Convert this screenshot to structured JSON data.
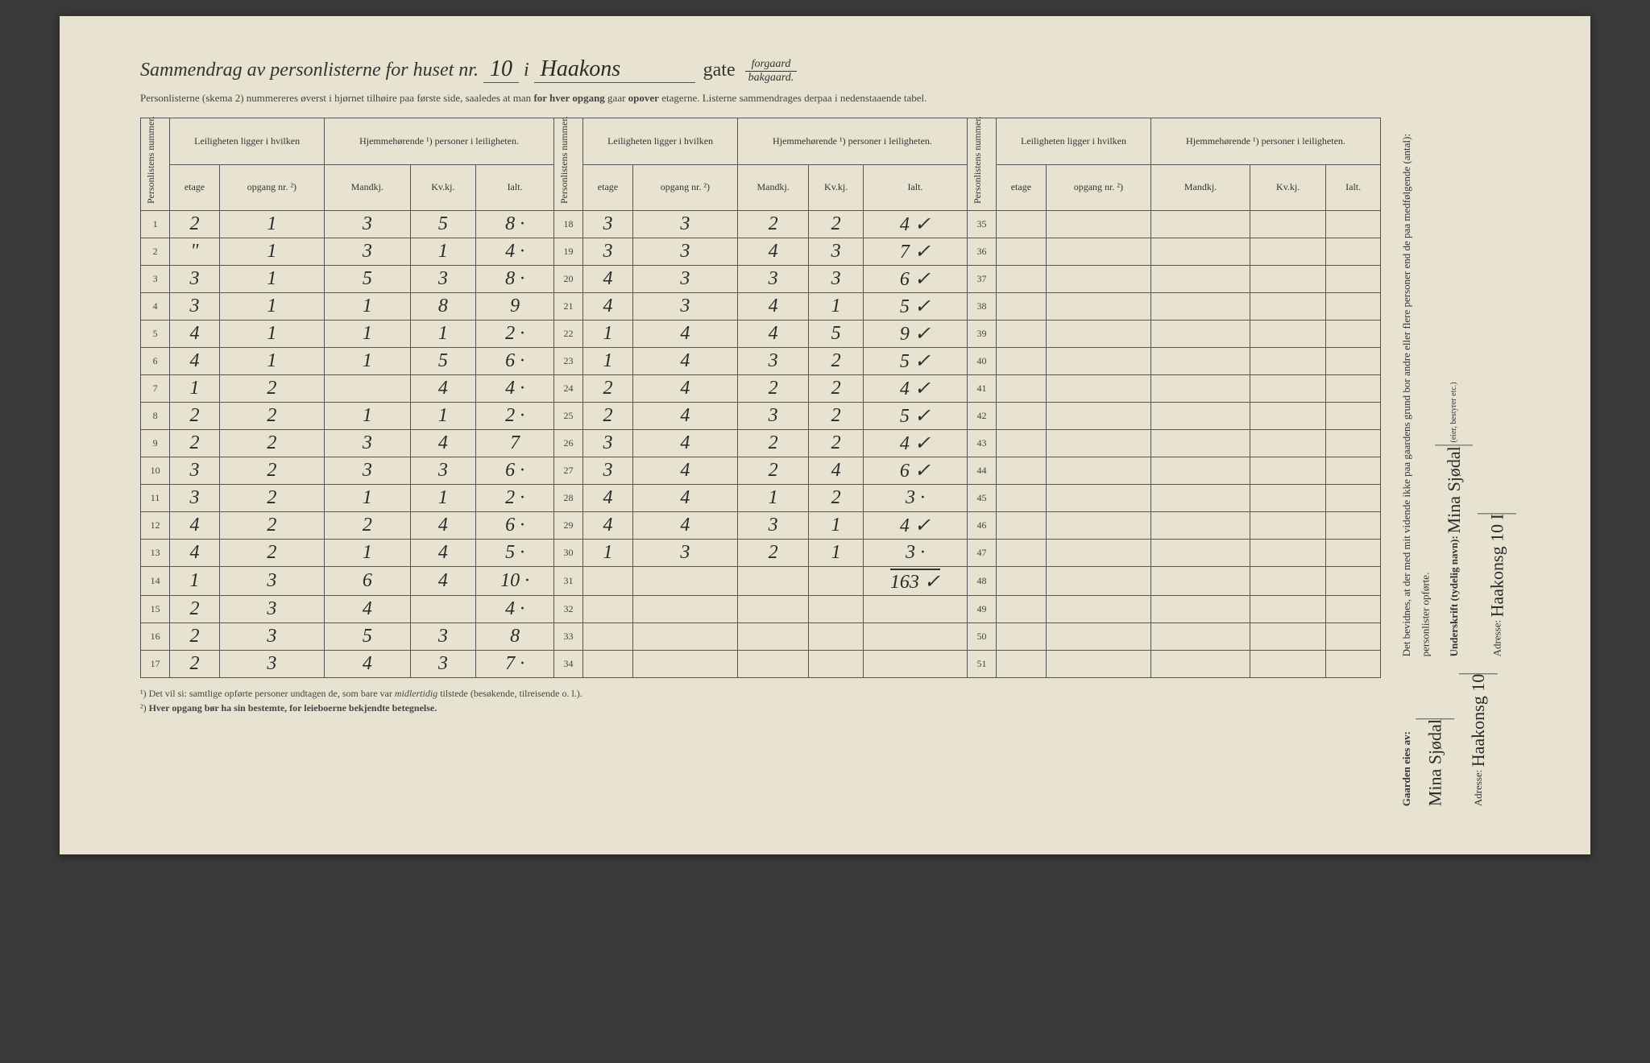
{
  "title": {
    "pre": "Sammendrag av personlisterne for huset nr.",
    "nr": "10",
    "i": "i",
    "street": "Haakons",
    "gate": "gate",
    "frac_top": "forgaard",
    "frac_bot": "bakgaard."
  },
  "subtitle": "Personlisterne (skema 2) nummereres øverst i hjørnet tilhøire paa første side, saaledes at man <b>for hver opgang</b> gaar <b>opover</b> etagerne.  Listerne sammendrages derpaa i nedenstaaende tabel.",
  "headers": {
    "personlistens": "Personlistens nummer.",
    "leiligheten": "Leiligheten ligger i hvilken",
    "hjemme": "Hjemmehørende ¹) personer i leiligheten.",
    "etage": "etage",
    "opgang": "opgang nr. ²)",
    "mandkj": "Mandkj.",
    "kvkj": "Kv.kj.",
    "ialt": "Ialt."
  },
  "rows": [
    {
      "n": 1,
      "d": [
        "2",
        "1",
        "3",
        "5",
        "8 ·"
      ]
    },
    {
      "n": 2,
      "d": [
        "\"",
        "1",
        "3",
        "1",
        "4 ·"
      ]
    },
    {
      "n": 3,
      "d": [
        "3",
        "1",
        "5",
        "3",
        "8 ·"
      ]
    },
    {
      "n": 4,
      "d": [
        "3",
        "1",
        "1",
        "8",
        "9"
      ]
    },
    {
      "n": 5,
      "d": [
        "4",
        "1",
        "1",
        "1",
        "2 ·"
      ]
    },
    {
      "n": 6,
      "d": [
        "4",
        "1",
        "1",
        "5",
        "6 ·"
      ]
    },
    {
      "n": 7,
      "d": [
        "1",
        "2",
        "",
        "4",
        "4 ·"
      ]
    },
    {
      "n": 8,
      "d": [
        "2",
        "2",
        "1",
        "1",
        "2 ·"
      ]
    },
    {
      "n": 9,
      "d": [
        "2",
        "2",
        "3",
        "4",
        "7"
      ]
    },
    {
      "n": 10,
      "d": [
        "3",
        "2",
        "3",
        "3",
        "6 ·"
      ]
    },
    {
      "n": 11,
      "d": [
        "3",
        "2",
        "1",
        "1",
        "2 ·"
      ]
    },
    {
      "n": 12,
      "d": [
        "4",
        "2",
        "2",
        "4",
        "6 ·"
      ]
    },
    {
      "n": 13,
      "d": [
        "4",
        "2",
        "1",
        "4",
        "5 ·"
      ]
    },
    {
      "n": 14,
      "d": [
        "1",
        "3",
        "6",
        "4",
        "10 ·"
      ]
    },
    {
      "n": 15,
      "d": [
        "2",
        "3",
        "4",
        "",
        "4 ·"
      ]
    },
    {
      "n": 16,
      "d": [
        "2",
        "3",
        "5",
        "3",
        "8"
      ]
    },
    {
      "n": 17,
      "d": [
        "2",
        "3",
        "4",
        "3",
        "7 ·"
      ]
    },
    {
      "n": 18,
      "d": [
        "3",
        "3",
        "2",
        "2",
        "4 ✓"
      ]
    },
    {
      "n": 19,
      "d": [
        "3",
        "3",
        "4",
        "3",
        "7 ✓"
      ]
    },
    {
      "n": 20,
      "d": [
        "4",
        "3",
        "3",
        "3",
        "6 ✓"
      ]
    },
    {
      "n": 21,
      "d": [
        "4",
        "3",
        "4",
        "1",
        "5 ✓"
      ]
    },
    {
      "n": 22,
      "d": [
        "1",
        "4",
        "4",
        "5",
        "9 ✓"
      ]
    },
    {
      "n": 23,
      "d": [
        "1",
        "4",
        "3",
        "2",
        "5 ✓"
      ]
    },
    {
      "n": 24,
      "d": [
        "2",
        "4",
        "2",
        "2",
        "4 ✓"
      ]
    },
    {
      "n": 25,
      "d": [
        "2",
        "4",
        "3",
        "2",
        "5 ✓"
      ]
    },
    {
      "n": 26,
      "d": [
        "3",
        "4",
        "2",
        "2",
        "4 ✓"
      ]
    },
    {
      "n": 27,
      "d": [
        "3",
        "4",
        "2",
        "4",
        "6 ✓"
      ]
    },
    {
      "n": 28,
      "d": [
        "4",
        "4",
        "1",
        "2",
        "3 ·"
      ]
    },
    {
      "n": 29,
      "d": [
        "4",
        "4",
        "3",
        "1",
        "4 ✓"
      ]
    },
    {
      "n": 30,
      "d": [
        "1",
        "3",
        "2",
        "1",
        "3 ·"
      ]
    },
    {
      "n": 31,
      "d": [
        "",
        "",
        "",
        "",
        ""
      ]
    },
    {
      "n": 32,
      "d": [
        "",
        "",
        "",
        "",
        ""
      ]
    },
    {
      "n": 33,
      "d": [
        "",
        "",
        "",
        "",
        ""
      ]
    },
    {
      "n": 34,
      "d": [
        "",
        "",
        "",
        "",
        ""
      ]
    },
    {
      "n": 35,
      "d": [
        "",
        "",
        "",
        "",
        ""
      ]
    },
    {
      "n": 36,
      "d": [
        "",
        "",
        "",
        "",
        ""
      ]
    },
    {
      "n": 37,
      "d": [
        "",
        "",
        "",
        "",
        ""
      ]
    },
    {
      "n": 38,
      "d": [
        "",
        "",
        "",
        "",
        ""
      ]
    },
    {
      "n": 39,
      "d": [
        "",
        "",
        "",
        "",
        ""
      ]
    },
    {
      "n": 40,
      "d": [
        "",
        "",
        "",
        "",
        ""
      ]
    },
    {
      "n": 41,
      "d": [
        "",
        "",
        "",
        "",
        ""
      ]
    },
    {
      "n": 42,
      "d": [
        "",
        "",
        "",
        "",
        ""
      ]
    },
    {
      "n": 43,
      "d": [
        "",
        "",
        "",
        "",
        ""
      ]
    },
    {
      "n": 44,
      "d": [
        "",
        "",
        "",
        "",
        ""
      ]
    },
    {
      "n": 45,
      "d": [
        "",
        "",
        "",
        "",
        ""
      ]
    },
    {
      "n": 46,
      "d": [
        "",
        "",
        "",
        "",
        ""
      ]
    },
    {
      "n": 47,
      "d": [
        "",
        "",
        "",
        "",
        ""
      ]
    },
    {
      "n": 48,
      "d": [
        "",
        "",
        "",
        "",
        ""
      ]
    },
    {
      "n": 49,
      "d": [
        "",
        "",
        "",
        "",
        ""
      ]
    },
    {
      "n": 50,
      "d": [
        "",
        "",
        "",
        "",
        ""
      ]
    },
    {
      "n": 51,
      "d": [
        "",
        "",
        "",
        "",
        ""
      ]
    }
  ],
  "total": "163 ✓",
  "footnotes": {
    "f1": "¹) Det vil si: samtlige opførte personer undtagen de, som bare var <i>midlertidig</i> tilstede (besøkende, tilreisende o. l.).",
    "f2": "²) <b>Hver opgang bør ha sin bestemte, for leieboerne bekjendte betegnelse.</b>"
  },
  "right": {
    "bevidnes": "Det bevidnes, at der med mit vidende ikke paa gaardens grund bor andre eller flere personer end de paa medfølgende (antal):",
    "personlister": "personlister opførte.",
    "underskrift_label": "Underskrift (tydelig navn):",
    "underskrift": "Mina Sjødal",
    "adresse_label": "Adresse:",
    "adresse": "Haakonsg 10 I",
    "adresse_sub": "(eier, bestyrer etc.)",
    "gaarden": "Gaarden eies av:",
    "owner": "Mina Sjødal",
    "owner_addr": "Haakonsg 10"
  }
}
